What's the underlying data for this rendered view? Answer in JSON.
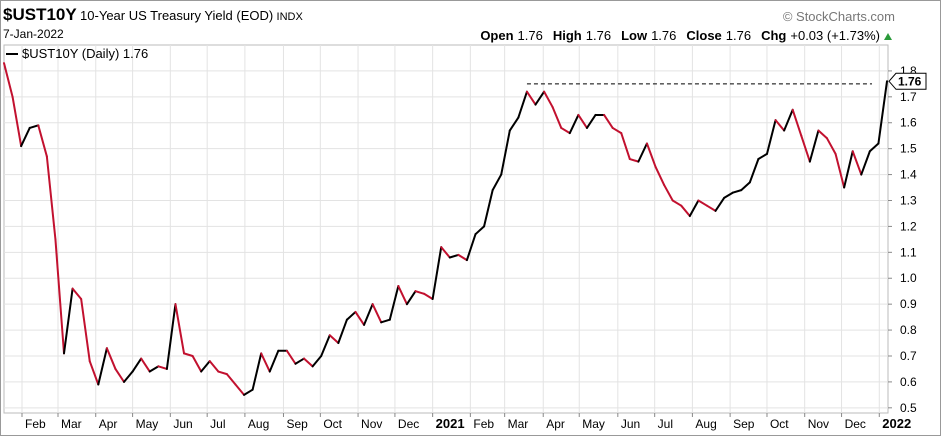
{
  "header": {
    "symbol": "$UST10Y",
    "name": "10-Year US Treasury Yield (EOD)",
    "exchange": "INDX",
    "date": "7-Jan-2022",
    "source": "© StockCharts.com",
    "quote": [
      {
        "label": "Open",
        "value": 1.76
      },
      {
        "label": "High",
        "value": 1.76
      },
      {
        "label": "Low",
        "value": 1.76
      },
      {
        "label": "Close",
        "value": 1.76
      },
      {
        "label": "Chg",
        "value": "+0.03 (+1.73%)"
      }
    ]
  },
  "chart_data": {
    "type": "line",
    "series": [
      {
        "name": "$UST10Y (Daily)",
        "color": "#000000",
        "down_color": "#c2112f",
        "values": [
          1.83,
          1.7,
          1.51,
          1.58,
          1.59,
          1.47,
          1.15,
          0.71,
          0.96,
          0.92,
          0.68,
          0.59,
          0.73,
          0.65,
          0.6,
          0.64,
          0.69,
          0.64,
          0.66,
          0.65,
          0.9,
          0.71,
          0.7,
          0.64,
          0.68,
          0.64,
          0.63,
          0.59,
          0.55,
          0.57,
          0.71,
          0.64,
          0.72,
          0.72,
          0.67,
          0.69,
          0.66,
          0.7,
          0.78,
          0.75,
          0.84,
          0.87,
          0.82,
          0.9,
          0.83,
          0.84,
          0.97,
          0.9,
          0.95,
          0.94,
          0.92,
          1.12,
          1.08,
          1.09,
          1.07,
          1.17,
          1.2,
          1.34,
          1.4,
          1.57,
          1.62,
          1.72,
          1.67,
          1.72,
          1.66,
          1.58,
          1.56,
          1.63,
          1.58,
          1.63,
          1.63,
          1.58,
          1.56,
          1.46,
          1.45,
          1.52,
          1.43,
          1.36,
          1.3,
          1.28,
          1.24,
          1.3,
          1.28,
          1.26,
          1.31,
          1.33,
          1.34,
          1.37,
          1.46,
          1.48,
          1.61,
          1.57,
          1.65,
          1.55,
          1.45,
          1.57,
          1.54,
          1.48,
          1.35,
          1.49,
          1.4,
          1.49,
          1.52,
          1.76
        ]
      }
    ],
    "reference_line": {
      "y": 1.75,
      "from_index": 61
    },
    "ylim": [
      0.48,
      1.9
    ],
    "yticks": [
      0.5,
      0.6,
      0.7,
      0.8,
      0.9,
      {
        "value": 1,
        "label": "1.0"
      },
      1.1,
      1.2,
      1.3,
      1.4,
      1.5,
      1.6,
      1.7,
      1.8
    ],
    "xticks": [
      {
        "value": 2.1,
        "label": "Feb"
      },
      {
        "value": 6.3,
        "label": "Mar"
      },
      {
        "value": 10.7,
        "label": "Apr"
      },
      {
        "value": 15,
        "label": "May"
      },
      {
        "value": 19.4,
        "label": "Jun"
      },
      {
        "value": 23.7,
        "label": "Jul"
      },
      {
        "value": 28.1,
        "label": "Aug"
      },
      {
        "value": 32.6,
        "label": "Sep"
      },
      {
        "value": 36.9,
        "label": "Oct"
      },
      {
        "value": 41.3,
        "label": "Nov"
      },
      {
        "value": 45.6,
        "label": "Dec"
      },
      {
        "value": 50,
        "label": "2021"
      },
      {
        "value": 54.4,
        "label": "Feb"
      },
      {
        "value": 58.4,
        "label": "Mar"
      },
      {
        "value": 62.9,
        "label": "Apr"
      },
      {
        "value": 67.1,
        "label": "May"
      },
      {
        "value": 71.6,
        "label": "Jun"
      },
      {
        "value": 75.9,
        "label": "Jul"
      },
      {
        "value": 80.3,
        "label": "Aug"
      },
      {
        "value": 84.7,
        "label": "Sep"
      },
      {
        "value": 89,
        "label": "Oct"
      },
      {
        "value": 93.4,
        "label": "Nov"
      },
      {
        "value": 97.7,
        "label": "Dec"
      },
      {
        "value": 102.1,
        "label": "2022"
      }
    ],
    "grid": true
  }
}
